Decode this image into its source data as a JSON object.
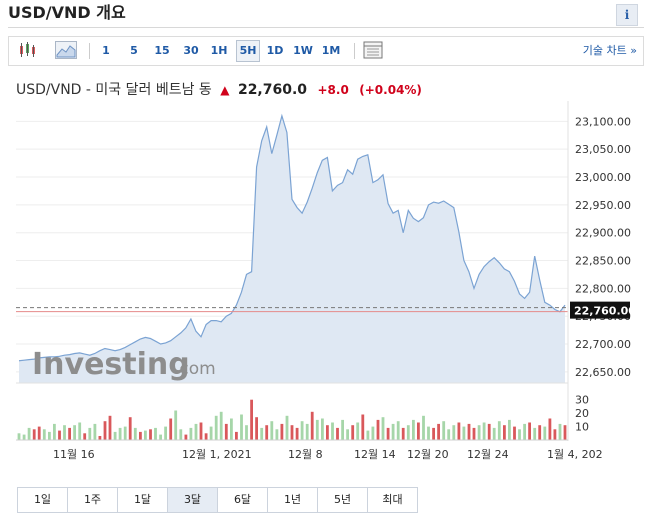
{
  "header": {
    "title": "USD/VND 개요",
    "info_glyph": "i"
  },
  "toolbar": {
    "intervals": [
      "1",
      "5",
      "15",
      "30",
      "1H",
      "5H",
      "1D",
      "1W",
      "1M"
    ],
    "active_interval": "5H",
    "advanced_label": "기술 차트 »",
    "icons": [
      "candlestick-icon",
      "area-chart-icon",
      "layout-icon"
    ]
  },
  "quote": {
    "name": "USD/VND - 미국 달러 베트남 동",
    "price": "22,760.0",
    "change": "+8.0",
    "change_pct": "(+0.04%)",
    "direction": "up",
    "accent_color": "#d0021b"
  },
  "watermark": {
    "brand": "Investing",
    "suffix": ".com"
  },
  "chart_data": {
    "type": "area",
    "price_axis": {
      "ticks": [
        "23,100.00",
        "23,050.00",
        "23,000.00",
        "22,950.00",
        "22,900.00",
        "22,850.00",
        "22,800.00",
        "22,750.00",
        "22,700.00",
        "22,650.00"
      ],
      "ylim": [
        22630,
        23115
      ]
    },
    "current_price_label": "22,760.00",
    "x_labels": [
      "11월 16",
      "12월 1, 2021",
      "12월 8",
      "12월 14",
      "12월 20",
      "12월 24",
      "1월 4, 202"
    ],
    "volume_axis": {
      "ticks": [
        "30",
        "20",
        "10"
      ],
      "ylim": [
        0,
        35
      ]
    },
    "price_values": [
      22670,
      22671,
      22672,
      22673,
      22675,
      22676,
      22677,
      22677,
      22678,
      22680,
      22681,
      22683,
      22684,
      22682,
      22680,
      22683,
      22688,
      22692,
      22690,
      22688,
      22690,
      22694,
      22699,
      22704,
      22709,
      22712,
      22710,
      22705,
      22700,
      22702,
      22706,
      22713,
      22720,
      22729,
      22745,
      22723,
      22713,
      22735,
      22742,
      22742,
      22740,
      22750,
      22755,
      22770,
      22793,
      22825,
      22830,
      23018,
      23065,
      23090,
      23042,
      23075,
      23110,
      23080,
      22960,
      22945,
      22935,
      22955,
      22980,
      23008,
      23030,
      23035,
      22975,
      22985,
      22990,
      23013,
      23005,
      23032,
      23037,
      23040,
      22990,
      22995,
      23004,
      22952,
      22935,
      22940,
      22900,
      22940,
      22926,
      22920,
      22927,
      22950,
      22955,
      22953,
      22957,
      22951,
      22945,
      22902,
      22850,
      22830,
      22800,
      22825,
      22839,
      22848,
      22855,
      22846,
      22835,
      22830,
      22813,
      22790,
      22782,
      22793,
      22858,
      22815,
      22775,
      22770,
      22762,
      22758,
      22770
    ],
    "volume_values": [
      5,
      4,
      9,
      8,
      10,
      8,
      6,
      12,
      7,
      11,
      9,
      11,
      13,
      5,
      9,
      12,
      3,
      14,
      18,
      6,
      9,
      10,
      17,
      9,
      6,
      7,
      8,
      9,
      4,
      10,
      16,
      22,
      8,
      4,
      9,
      12,
      13,
      5,
      10,
      18,
      21,
      12,
      16,
      6,
      19,
      11,
      30,
      17,
      9,
      11,
      14,
      8,
      12,
      18,
      11,
      9,
      14,
      12,
      21,
      15,
      16,
      11,
      13,
      9,
      15,
      8,
      11,
      13,
      19,
      7,
      10,
      15,
      17,
      9,
      12,
      14,
      9,
      11,
      15,
      13,
      18,
      10,
      9,
      12,
      14,
      8,
      11,
      13,
      10,
      12,
      9,
      11,
      13,
      12,
      9,
      14,
      11,
      15,
      10,
      8,
      12,
      13,
      9,
      11,
      10,
      16,
      8,
      12,
      11
    ],
    "volume_colors": [
      "g",
      "g",
      "g",
      "r",
      "r",
      "g",
      "g",
      "g",
      "r",
      "g",
      "r",
      "g",
      "g",
      "r",
      "g",
      "g",
      "r",
      "r",
      "r",
      "g",
      "g",
      "g",
      "r",
      "g",
      "r",
      "g",
      "r",
      "g",
      "g",
      "g",
      "r",
      "g",
      "g",
      "r",
      "g",
      "g",
      "r",
      "r",
      "g",
      "g",
      "g",
      "r",
      "g",
      "r",
      "g",
      "g",
      "r",
      "r",
      "g",
      "r",
      "g",
      "g",
      "r",
      "g",
      "r",
      "r",
      "g",
      "g",
      "r",
      "g",
      "g",
      "r",
      "g",
      "r",
      "g",
      "g",
      "r",
      "g",
      "r",
      "g",
      "g",
      "r",
      "g",
      "r",
      "g",
      "g",
      "r",
      "g",
      "g",
      "r",
      "g",
      "g",
      "r",
      "r",
      "g",
      "g",
      "g",
      "r",
      "g",
      "r",
      "r",
      "g",
      "g",
      "r",
      "g",
      "g",
      "r",
      "g",
      "r",
      "g",
      "g",
      "r",
      "g",
      "r",
      "g",
      "r",
      "r",
      "g",
      "r"
    ],
    "up_color": "#a6d6a9",
    "down_color": "#d9585b",
    "line_color": "#7ba3d3",
    "fill_color": "#dfe8f3"
  },
  "ranges": {
    "items": [
      "1일",
      "1주",
      "1달",
      "3달",
      "6달",
      "1년",
      "5년",
      "최대"
    ],
    "active": "3달"
  }
}
